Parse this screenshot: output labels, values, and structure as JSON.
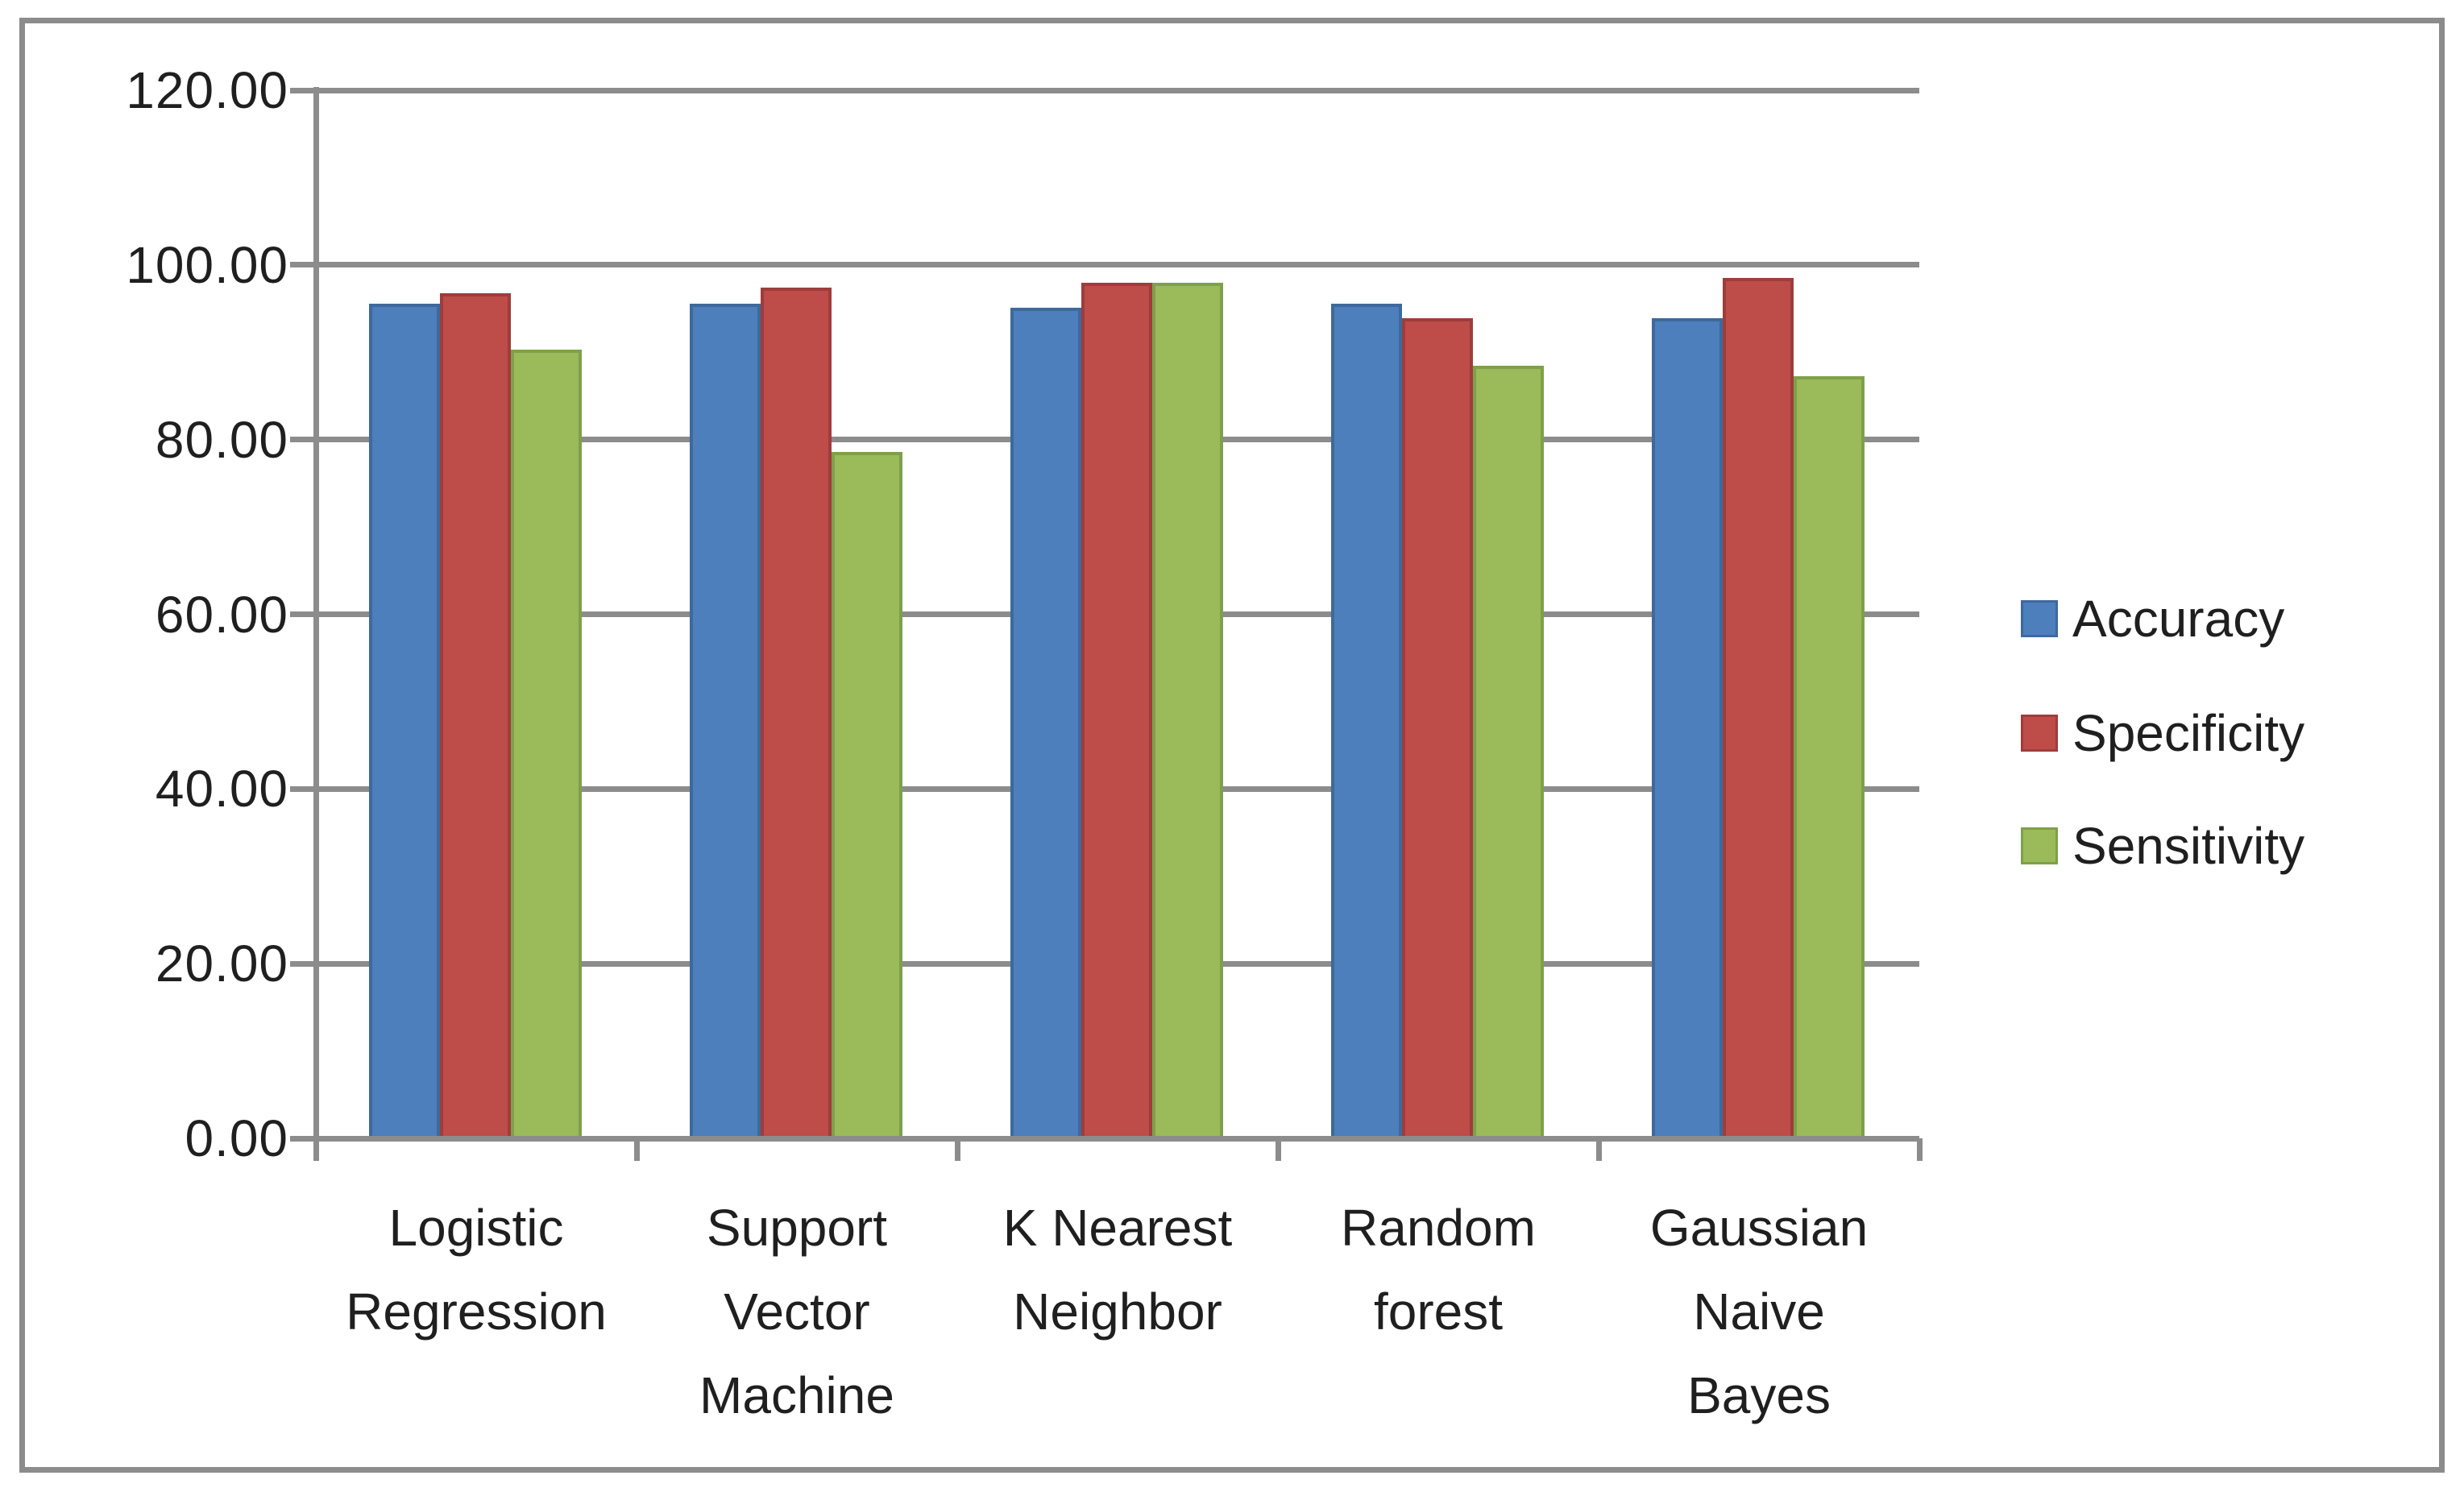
{
  "chart_data": {
    "type": "bar",
    "title": "",
    "categories": [
      {
        "label": "Logistic Regression",
        "lines": "Logistic\nRegression"
      },
      {
        "label": "Support Vector Machine",
        "lines": "Support\nVector\nMachine"
      },
      {
        "label": "K Nearest Neighbor",
        "lines": "K Nearest\nNeighbor"
      },
      {
        "label": "Random forest",
        "lines": "Random\nforest"
      },
      {
        "label": "Gaussian Naive Bayes",
        "lines": "Gaussian\nNaive\nBayes"
      }
    ],
    "series": [
      {
        "name": "Accuracy",
        "color": "#4C7FBC",
        "border": "#3E699C",
        "values": [
          95.6,
          95.6,
          95.1,
          95.6,
          93.9
        ]
      },
      {
        "name": "Specificity",
        "color": "#BE4C49",
        "border": "#9E3D3B",
        "values": [
          96.8,
          97.4,
          98.0,
          93.9,
          98.5
        ]
      },
      {
        "name": "Sensitivity",
        "color": "#9BBA59",
        "border": "#7FA04A",
        "values": [
          90.3,
          78.6,
          98.0,
          88.5,
          87.3
        ]
      }
    ],
    "y_axis": {
      "min": 0,
      "max": 120,
      "step": 20,
      "tick_labels": [
        "120.00",
        "100.00",
        "80.00",
        "60.00",
        "40.00",
        "20.00",
        "0.00"
      ]
    },
    "legend_position": "right",
    "grid": true,
    "colors": {
      "gridline": "#8C8C8C",
      "axis": "#8C8C8C",
      "frame_border": "#8C8C8C",
      "text": "#1F1F1F",
      "background": "#FFFFFF"
    }
  }
}
